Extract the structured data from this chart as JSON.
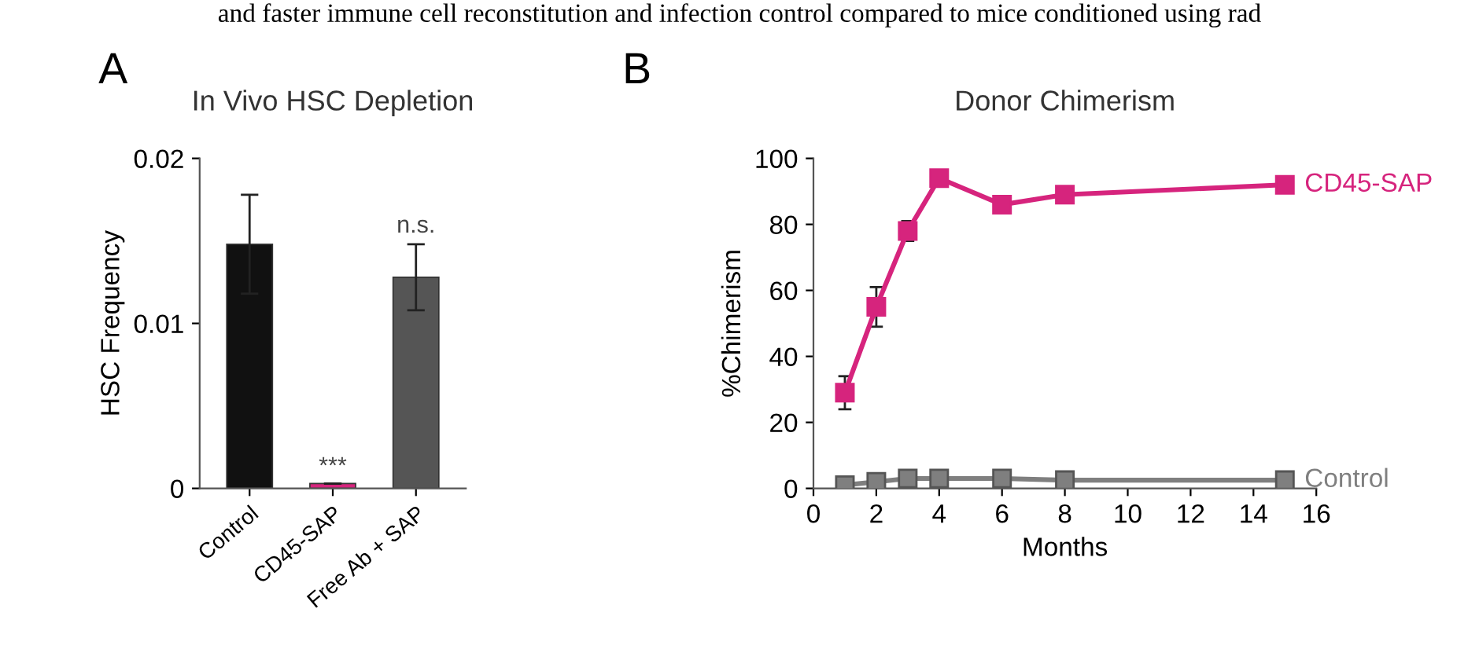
{
  "chart_data": [
    {
      "type": "bar",
      "title": "In Vivo HSC Depletion",
      "ylabel": "HSC Frequency",
      "categories": [
        "Control",
        "CD45-SAP",
        "Free Ab + SAP"
      ],
      "values": [
        0.0148,
        0.0003,
        0.0128
      ],
      "errors": [
        0.003,
        null,
        0.002
      ],
      "colors": [
        "#111111",
        "#d6247d",
        "#555555"
      ],
      "ylim": [
        0,
        0.02
      ],
      "yticks": [
        0,
        0.01,
        0.02
      ],
      "grid": false,
      "annotations": [
        "and faster immune cell reconstitution and infection control compared to mice conditioned using rad",
        "A",
        {
          "text": "***",
          "x": "CD45-SAP",
          "y": 0.0006
        },
        {
          "text": "n.s.",
          "x": "Free Ab + SAP",
          "y": 0.0152
        }
      ]
    },
    {
      "type": "line",
      "title": "Donor Chimerism",
      "xlabel": "Months",
      "ylabel": "%Chimerism",
      "x": [
        1,
        2,
        3,
        4,
        6,
        8,
        15
      ],
      "xlim": [
        0,
        16
      ],
      "xticks": [
        0,
        2,
        4,
        6,
        8,
        10,
        12,
        14,
        16
      ],
      "ylim": [
        0,
        100
      ],
      "yticks": [
        0,
        20,
        40,
        60,
        80,
        100
      ],
      "grid": false,
      "marker": "square",
      "line_style": "solid",
      "legend": false,
      "series": [
        {
          "name": "CD45-SAP",
          "color": "#d6247d",
          "values": [
            29,
            55,
            78,
            94,
            86,
            89,
            92
          ],
          "errors": [
            5,
            6,
            3,
            null,
            null,
            null,
            null
          ]
        },
        {
          "name": "Control",
          "color": "#7f7f7f",
          "values": [
            1,
            2,
            3,
            3,
            3,
            2.5,
            2.5
          ]
        }
      ],
      "annotations": [
        "B"
      ]
    }
  ]
}
